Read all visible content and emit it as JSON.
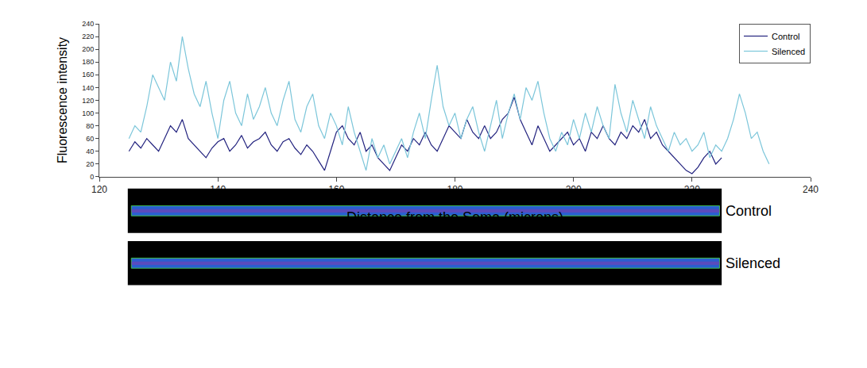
{
  "chart_data": {
    "type": "line",
    "xlabel": "Distance from the Soma (microns)",
    "ylabel": "Fluorescence intensity",
    "xlim": [
      120,
      240
    ],
    "xticks": [
      120,
      140,
      160,
      180,
      200,
      220,
      240
    ],
    "ylim": [
      0,
      240
    ],
    "yticks": [
      0,
      20,
      40,
      60,
      80,
      100,
      120,
      140,
      160,
      180,
      200,
      220,
      240
    ],
    "grid": false,
    "legend": "top right",
    "annotations": [
      "Control",
      "Silenced"
    ],
    "series": [
      {
        "name": "Control",
        "color": "#23237f",
        "x": [
          125,
          126,
          127,
          128,
          129,
          130,
          131,
          132,
          133,
          134,
          135,
          136,
          137,
          138,
          139,
          140,
          141,
          142,
          143,
          144,
          145,
          146,
          147,
          148,
          149,
          150,
          151,
          152,
          153,
          154,
          155,
          156,
          157,
          158,
          159,
          160,
          161,
          162,
          163,
          164,
          165,
          166,
          167,
          168,
          169,
          170,
          171,
          172,
          173,
          174,
          175,
          176,
          177,
          178,
          179,
          180,
          181,
          182,
          183,
          184,
          185,
          186,
          187,
          188,
          189,
          190,
          191,
          192,
          193,
          194,
          195,
          196,
          197,
          198,
          199,
          200,
          201,
          202,
          203,
          204,
          205,
          206,
          207,
          208,
          209,
          210,
          211,
          212,
          213,
          214,
          215,
          216,
          217,
          218,
          219,
          220,
          221,
          222,
          223,
          224,
          225
        ],
        "values": [
          40,
          55,
          45,
          60,
          50,
          40,
          60,
          80,
          70,
          90,
          60,
          50,
          40,
          30,
          45,
          55,
          60,
          40,
          50,
          65,
          45,
          55,
          60,
          70,
          50,
          40,
          55,
          60,
          45,
          35,
          50,
          40,
          25,
          10,
          40,
          70,
          80,
          60,
          50,
          70,
          40,
          50,
          30,
          20,
          10,
          30,
          50,
          40,
          60,
          50,
          70,
          50,
          40,
          60,
          80,
          70,
          60,
          90,
          70,
          60,
          80,
          60,
          70,
          90,
          100,
          125,
          90,
          70,
          50,
          80,
          60,
          40,
          50,
          60,
          70,
          50,
          60,
          40,
          70,
          60,
          80,
          60,
          50,
          70,
          60,
          80,
          70,
          90,
          60,
          70,
          50,
          40,
          30,
          20,
          10,
          5,
          15,
          30,
          40,
          20,
          30
        ]
      },
      {
        "name": "Silenced",
        "color": "#7cc6da",
        "x": [
          125,
          126,
          127,
          128,
          129,
          130,
          131,
          132,
          133,
          134,
          135,
          136,
          137,
          138,
          139,
          140,
          141,
          142,
          143,
          144,
          145,
          146,
          147,
          148,
          149,
          150,
          151,
          152,
          153,
          154,
          155,
          156,
          157,
          158,
          159,
          160,
          161,
          162,
          163,
          164,
          165,
          166,
          167,
          168,
          169,
          170,
          171,
          172,
          173,
          174,
          175,
          176,
          177,
          178,
          179,
          180,
          181,
          182,
          183,
          184,
          185,
          186,
          187,
          188,
          189,
          190,
          191,
          192,
          193,
          194,
          195,
          196,
          197,
          198,
          199,
          200,
          201,
          202,
          203,
          204,
          205,
          206,
          207,
          208,
          209,
          210,
          211,
          212,
          213,
          214,
          215,
          216,
          217,
          218,
          219,
          220,
          221,
          222,
          223,
          224,
          225,
          226,
          227,
          228,
          229,
          230,
          231,
          232,
          233
        ],
        "values": [
          60,
          80,
          70,
          110,
          160,
          140,
          120,
          180,
          150,
          220,
          170,
          130,
          110,
          150,
          100,
          60,
          120,
          150,
          100,
          80,
          130,
          90,
          110,
          140,
          100,
          80,
          120,
          150,
          90,
          70,
          110,
          130,
          80,
          60,
          100,
          80,
          50,
          110,
          70,
          40,
          10,
          60,
          30,
          50,
          20,
          40,
          60,
          30,
          70,
          100,
          60,
          120,
          175,
          110,
          80,
          100,
          60,
          90,
          110,
          70,
          40,
          80,
          120,
          60,
          100,
          130,
          90,
          140,
          120,
          150,
          100,
          60,
          40,
          70,
          50,
          90,
          60,
          100,
          70,
          110,
          80,
          60,
          145,
          100,
          70,
          120,
          90,
          60,
          110,
          80,
          60,
          40,
          70,
          50,
          60,
          40,
          50,
          70,
          30,
          50,
          40,
          60,
          90,
          130,
          100,
          60,
          70,
          40,
          20
        ]
      }
    ]
  }
}
